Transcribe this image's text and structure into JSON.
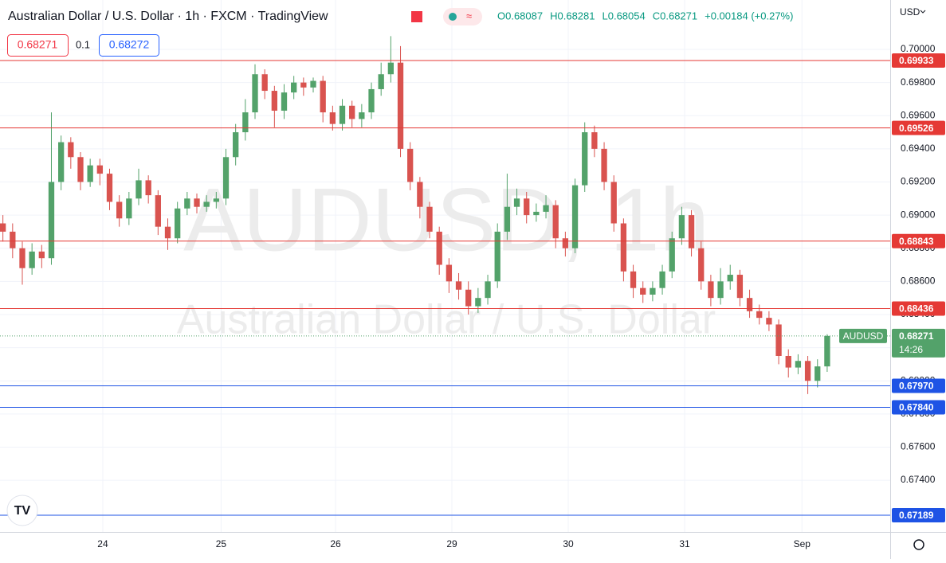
{
  "header": {
    "title": "Australian Dollar / U.S. Dollar · 1h · FXCM · TradingView",
    "ohlc": [
      "O0.68087",
      "H0.68281",
      "L0.68054",
      "C0.68271",
      "+0.00184 (+0.27%)"
    ],
    "sell": "0.68271",
    "spread": "0.1",
    "buy": "0.68272",
    "currency": "USD",
    "watermark": "AUDUSD, 1h",
    "watermark_sub": "Australian Dollar / U.S. Dollar"
  },
  "chart_data": {
    "type": "candlestick",
    "up_color": "#53a26a",
    "down_color": "#d9534f",
    "xlim": [
      -0.3,
      91.5
    ],
    "xticks": [
      {
        "value": 10.3,
        "label": "24"
      },
      {
        "value": 22.5,
        "label": "25"
      },
      {
        "value": 34.3,
        "label": "26"
      },
      {
        "value": 46.3,
        "label": "29"
      },
      {
        "value": 58.3,
        "label": "30"
      },
      {
        "value": 70.3,
        "label": "31"
      },
      {
        "value": 82.4,
        "label": "Sep"
      }
    ],
    "ylim": [
      0.67088,
      0.70298
    ],
    "yticks": [
      {
        "value": 0.674,
        "label": "0.67400"
      },
      {
        "value": 0.676,
        "label": "0.67600"
      },
      {
        "value": 0.678,
        "label": "0.67800"
      },
      {
        "value": 0.68,
        "label": "0.68000"
      },
      {
        "value": 0.682,
        "label": "0.68200"
      },
      {
        "value": 0.684,
        "label": "0.68400"
      },
      {
        "value": 0.686,
        "label": "0.68600"
      },
      {
        "value": 0.688,
        "label": "0.68800"
      },
      {
        "value": 0.69,
        "label": "0.69000"
      },
      {
        "value": 0.692,
        "label": "0.69200"
      },
      {
        "value": 0.694,
        "label": "0.69400"
      },
      {
        "value": 0.696,
        "label": "0.69600"
      },
      {
        "value": 0.698,
        "label": "0.69800"
      },
      {
        "value": 0.7,
        "label": "0.70000"
      }
    ],
    "grid": true,
    "open": [
      0.6895,
      0.689,
      0.688,
      0.6868,
      0.6878,
      0.6874,
      0.692,
      0.6944,
      0.6935,
      0.692,
      0.693,
      0.6925,
      0.6908,
      0.6898,
      0.691,
      0.6921,
      0.6912,
      0.6893,
      0.6886,
      0.6904,
      0.691,
      0.6905,
      0.6908,
      0.691,
      0.6935,
      0.695,
      0.6962,
      0.6985,
      0.6975,
      0.6963,
      0.6974,
      0.698,
      0.6977,
      0.6981,
      0.6962,
      0.6955,
      0.6966,
      0.6958,
      0.6962,
      0.6976,
      0.6985,
      0.6992,
      0.694,
      0.692,
      0.6905,
      0.689,
      0.687,
      0.686,
      0.6855,
      0.6845,
      0.685,
      0.686,
      0.689,
      0.6905,
      0.691,
      0.69,
      0.6902,
      0.6906,
      0.6886,
      0.688,
      0.6918,
      0.695,
      0.694,
      0.692,
      0.6895,
      0.6866,
      0.6856,
      0.6852,
      0.6856,
      0.6866,
      0.6886,
      0.69,
      0.688,
      0.686,
      0.685,
      0.686,
      0.6864,
      0.685,
      0.6842,
      0.6838,
      0.6834,
      0.6815,
      0.6808,
      0.6812,
      0.68,
      0.68087
    ],
    "high": [
      0.69,
      0.6895,
      0.6884,
      0.6883,
      0.6882,
      0.6962,
      0.6948,
      0.6947,
      0.6938,
      0.6934,
      0.6934,
      0.6928,
      0.6912,
      0.6914,
      0.6928,
      0.6924,
      0.6915,
      0.6898,
      0.6908,
      0.6914,
      0.6913,
      0.6912,
      0.6914,
      0.694,
      0.6955,
      0.697,
      0.6991,
      0.6988,
      0.6978,
      0.6979,
      0.6984,
      0.6983,
      0.6983,
      0.6984,
      0.6966,
      0.697,
      0.6969,
      0.6967,
      0.698,
      0.6992,
      0.7008,
      0.7002,
      0.6944,
      0.6923,
      0.6908,
      0.6893,
      0.6874,
      0.6865,
      0.686,
      0.6856,
      0.6864,
      0.6895,
      0.6925,
      0.6916,
      0.6914,
      0.6907,
      0.6912,
      0.6909,
      0.689,
      0.6922,
      0.6956,
      0.6954,
      0.6944,
      0.6924,
      0.6898,
      0.687,
      0.686,
      0.686,
      0.687,
      0.689,
      0.6905,
      0.6903,
      0.6884,
      0.6864,
      0.6868,
      0.687,
      0.6867,
      0.6855,
      0.6846,
      0.6842,
      0.6837,
      0.6819,
      0.6816,
      0.6815,
      0.6813,
      0.68281
    ],
    "low": [
      0.6884,
      0.6874,
      0.6858,
      0.6864,
      0.6868,
      0.687,
      0.6915,
      0.6928,
      0.6915,
      0.6917,
      0.6918,
      0.6903,
      0.6893,
      0.6894,
      0.6906,
      0.6907,
      0.6888,
      0.6879,
      0.6883,
      0.69,
      0.6901,
      0.6902,
      0.6904,
      0.6906,
      0.693,
      0.6945,
      0.6958,
      0.697,
      0.6953,
      0.6958,
      0.697,
      0.6972,
      0.6974,
      0.6956,
      0.6951,
      0.6951,
      0.6953,
      0.6953,
      0.6958,
      0.6972,
      0.698,
      0.6935,
      0.6915,
      0.6898,
      0.6886,
      0.6864,
      0.6853,
      0.6849,
      0.684,
      0.6841,
      0.6846,
      0.6856,
      0.6885,
      0.69,
      0.6895,
      0.6896,
      0.6898,
      0.688,
      0.6875,
      0.6877,
      0.6914,
      0.6935,
      0.6915,
      0.689,
      0.686,
      0.685,
      0.6847,
      0.6848,
      0.6852,
      0.6862,
      0.6882,
      0.6875,
      0.6855,
      0.6845,
      0.6846,
      0.6855,
      0.6845,
      0.6838,
      0.6834,
      0.683,
      0.681,
      0.6802,
      0.6804,
      0.6792,
      0.6796,
      0.68054
    ],
    "close": [
      0.689,
      0.688,
      0.6868,
      0.6878,
      0.6874,
      0.692,
      0.6944,
      0.6935,
      0.692,
      0.693,
      0.6925,
      0.6908,
      0.6898,
      0.691,
      0.6921,
      0.6912,
      0.6893,
      0.6886,
      0.6904,
      0.691,
      0.6905,
      0.6908,
      0.691,
      0.6935,
      0.695,
      0.6962,
      0.6985,
      0.6975,
      0.6963,
      0.6974,
      0.698,
      0.6977,
      0.6981,
      0.6962,
      0.6955,
      0.6966,
      0.6958,
      0.6962,
      0.6976,
      0.6985,
      0.6992,
      0.694,
      0.692,
      0.6905,
      0.689,
      0.687,
      0.686,
      0.6855,
      0.6845,
      0.685,
      0.686,
      0.689,
      0.6905,
      0.691,
      0.69,
      0.6902,
      0.6906,
      0.6886,
      0.688,
      0.6918,
      0.695,
      0.694,
      0.692,
      0.6895,
      0.6866,
      0.6856,
      0.6852,
      0.6856,
      0.6866,
      0.6886,
      0.69,
      0.688,
      0.686,
      0.685,
      0.686,
      0.6864,
      0.685,
      0.6842,
      0.6838,
      0.6834,
      0.6815,
      0.6808,
      0.6812,
      0.68,
      0.68087,
      0.68271
    ],
    "levels": [
      {
        "value": 0.69933,
        "label": "0.69933",
        "color": "#e53935"
      },
      {
        "value": 0.69526,
        "label": "0.69526",
        "color": "#e53935"
      },
      {
        "value": 0.68843,
        "label": "0.68843",
        "color": "#e53935"
      },
      {
        "value": 0.68436,
        "label": "0.68436",
        "color": "#e53935"
      },
      {
        "value": 0.6797,
        "label": "0.67970",
        "color": "#1e53e5"
      },
      {
        "value": 0.6784,
        "label": "0.67840",
        "color": "#1e53e5"
      },
      {
        "value": 0.67189,
        "label": "0.67189",
        "color": "#1e53e5"
      }
    ],
    "last": {
      "name": "AUDUSD",
      "value": 0.68271,
      "countdown": "14:26",
      "color": "#53a26a"
    }
  }
}
